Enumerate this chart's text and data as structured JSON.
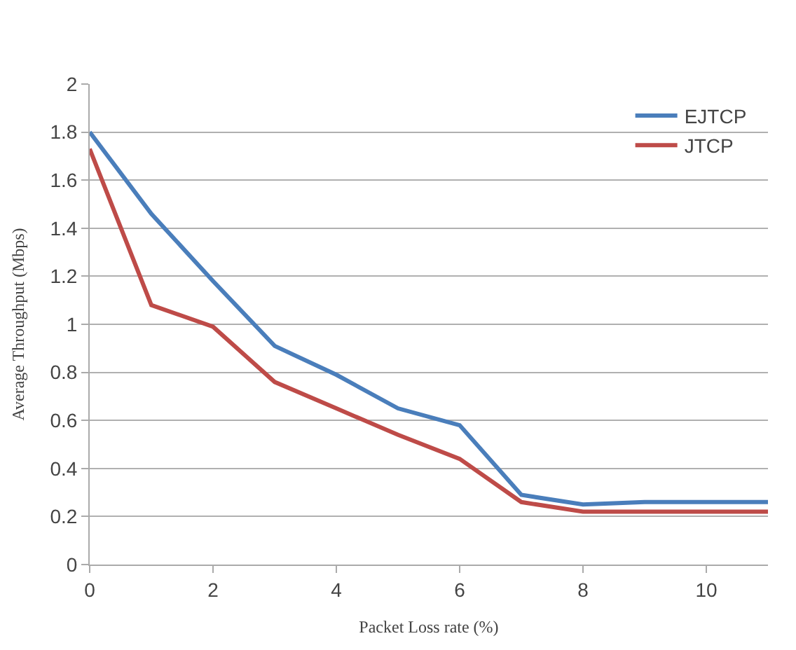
{
  "chart_data": {
    "type": "line",
    "xlabel": "Packet Loss rate (%)",
    "ylabel": "Average Throughput (Mbps)",
    "x": [
      0,
      1,
      2,
      3,
      4,
      5,
      6,
      7,
      8,
      9,
      10,
      11
    ],
    "series": [
      {
        "name": "EJTCP",
        "color": "#4a7ebb",
        "values": [
          1.8,
          1.46,
          1.18,
          0.91,
          0.79,
          0.65,
          0.58,
          0.29,
          0.25,
          0.26,
          0.26,
          0.26
        ]
      },
      {
        "name": "JTCP",
        "color": "#be4b48",
        "values": [
          1.73,
          1.08,
          0.99,
          0.76,
          0.65,
          0.54,
          0.44,
          0.26,
          0.22,
          0.22,
          0.22,
          0.22
        ]
      }
    ],
    "xlim": [
      0,
      11
    ],
    "xticks": [
      0,
      2,
      4,
      6,
      8,
      10
    ],
    "ylim": [
      0,
      2
    ],
    "yticks": [
      0,
      0.2,
      0.4,
      0.6,
      0.8,
      1,
      1.2,
      1.4,
      1.6,
      1.8,
      2
    ],
    "grid": "y",
    "legend": "top right",
    "marker": "none",
    "line_style": "solid"
  }
}
